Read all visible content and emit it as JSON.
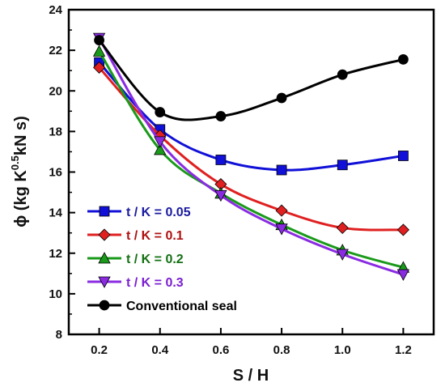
{
  "chart_data": {
    "type": "line",
    "x": [
      0.2,
      0.4,
      0.6,
      0.8,
      1.0,
      1.2
    ],
    "xlim": [
      0.1,
      1.3
    ],
    "ylim": [
      8,
      24
    ],
    "x_ticks": [
      "0.2",
      "0.4",
      "0.6",
      "0.8",
      "1.0",
      "1.2"
    ],
    "y_ticks": [
      "8",
      "10",
      "12",
      "14",
      "16",
      "18",
      "20",
      "22",
      "24"
    ],
    "xlabel": "S / H",
    "ylabel": {
      "main": "ϕ (kg K",
      "sup": "0.5",
      "rest": "kN s)"
    },
    "legend_position": "lower-left",
    "grid": false,
    "series": [
      {
        "name": "t / K = 0.05",
        "color": "#1010d8",
        "marker": "square",
        "label_color": "#1a1aa0",
        "values": [
          21.4,
          18.1,
          16.6,
          16.1,
          16.35,
          16.8
        ]
      },
      {
        "name": "t / K = 0.1",
        "color": "#e02020",
        "marker": "diamond",
        "label_color": "#b01010",
        "values": [
          21.15,
          17.8,
          15.4,
          14.1,
          13.25,
          13.15
        ]
      },
      {
        "name": "t / K = 0.2",
        "color": "#1a9a1a",
        "marker": "triangle-up",
        "label_color": "#137013",
        "values": [
          21.95,
          17.1,
          14.95,
          13.4,
          12.15,
          11.3
        ]
      },
      {
        "name": "t / K = 0.3",
        "color": "#8a2be2",
        "marker": "triangle-down",
        "label_color": "#7a1fd0",
        "values": [
          22.6,
          17.5,
          14.85,
          13.2,
          11.95,
          10.95
        ]
      },
      {
        "name": "Conventional seal",
        "color": "#000000",
        "marker": "circle",
        "label_color": "#000000",
        "values": [
          22.5,
          18.95,
          18.75,
          19.65,
          20.8,
          21.55
        ]
      }
    ]
  }
}
